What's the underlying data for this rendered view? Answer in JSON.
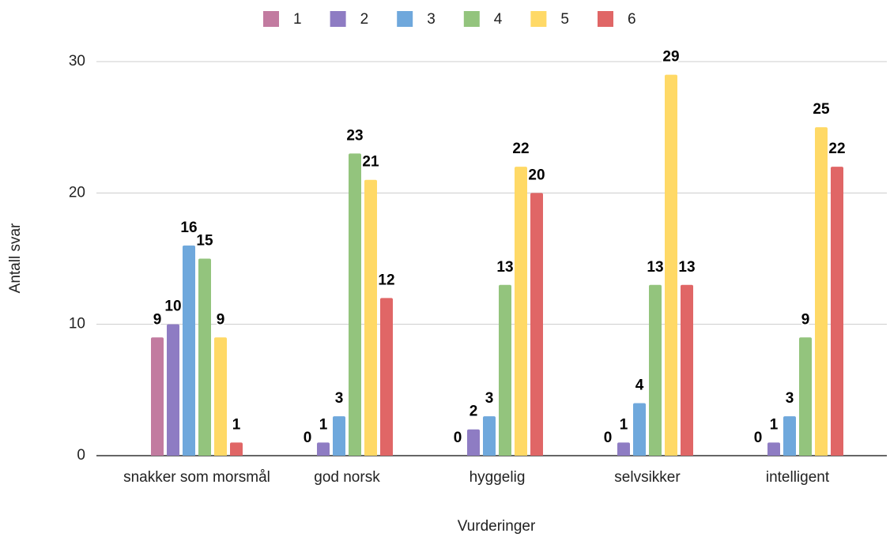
{
  "chart_data": {
    "type": "bar",
    "x_label": "Vurderinger",
    "y_label": "Antall svar",
    "categories": [
      "snakker som morsmål",
      "god norsk",
      "hyggelig",
      "selvsikker",
      "intelligent"
    ],
    "series": [
      {
        "name": "1",
        "color": "#c27ba0",
        "values": [
          9,
          0,
          0,
          0,
          0
        ]
      },
      {
        "name": "2",
        "color": "#8e7cc3",
        "values": [
          10,
          1,
          2,
          1,
          1
        ]
      },
      {
        "name": "3",
        "color": "#6fa8dc",
        "values": [
          16,
          3,
          3,
          4,
          3
        ]
      },
      {
        "name": "4",
        "color": "#93c47d",
        "values": [
          15,
          23,
          13,
          13,
          9
        ]
      },
      {
        "name": "5",
        "color": "#ffd966",
        "values": [
          9,
          21,
          22,
          29,
          25
        ]
      },
      {
        "name": "6",
        "color": "#e06666",
        "values": [
          1,
          12,
          20,
          13,
          22
        ]
      }
    ],
    "ylim": [
      0,
      30
    ],
    "yticks": [
      0,
      10,
      20,
      30
    ],
    "grid": true,
    "legend": "top"
  }
}
